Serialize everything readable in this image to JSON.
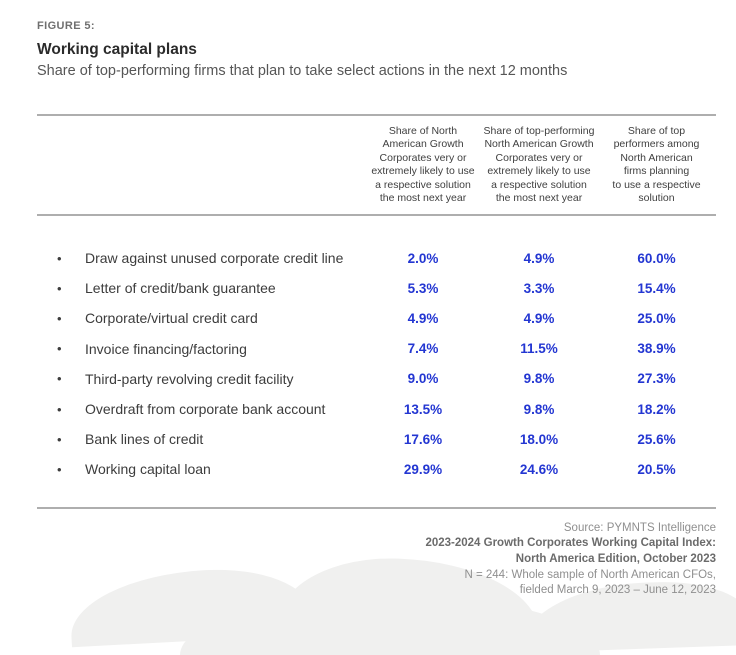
{
  "figure": {
    "label": "FIGURE 5:",
    "title": "Working capital plans",
    "subtitle": "Share of top-performing firms that plan to take select actions in the next 12 months"
  },
  "table": {
    "column_headers": [
      "Share of North\nAmerican Growth\nCorporates very or\nextremely likely to use\na respective solution\nthe most next year",
      "Share of top-performing\nNorth American Growth\nCorporates very or\nextremely likely to use\na respective solution\nthe most next year",
      "Share of top\nperformers among\nNorth American\nfirms planning\nto use a respective\nsolution"
    ],
    "rows": [
      {
        "label": "Draw against unused corporate credit line",
        "values": [
          "2.0%",
          "4.9%",
          "60.0%"
        ]
      },
      {
        "label": "Letter of credit/bank guarantee",
        "values": [
          "5.3%",
          "3.3%",
          "15.4%"
        ]
      },
      {
        "label": "Corporate/virtual credit card",
        "values": [
          "4.9%",
          "4.9%",
          "25.0%"
        ]
      },
      {
        "label": "Invoice financing/factoring",
        "values": [
          "7.4%",
          "11.5%",
          "38.9%"
        ]
      },
      {
        "label": "Third-party revolving credit facility",
        "values": [
          "9.0%",
          "9.8%",
          "27.3%"
        ]
      },
      {
        "label": "Overdraft from corporate bank account",
        "values": [
          "13.5%",
          "9.8%",
          "18.2%"
        ]
      },
      {
        "label": "Bank lines of credit",
        "values": [
          "17.6%",
          "18.0%",
          "25.6%"
        ]
      },
      {
        "label": "Working capital loan",
        "values": [
          "29.9%",
          "24.6%",
          "20.5%"
        ]
      }
    ]
  },
  "footer": {
    "lines": [
      {
        "text": "Source: PYMNTS Intelligence"
      },
      {
        "text": "2023-2024 Growth Corporates Working Capital Index:"
      },
      {
        "text": "North America Edition, October 2023"
      },
      {
        "text": "N = 244: Whole sample of North American CFOs,"
      },
      {
        "text": "fielded March 9, 2023 – June 12, 2023"
      }
    ]
  },
  "colors": {
    "accent_blue": "#2336d2",
    "rule_gray": "#aeaeae"
  },
  "chart_data": {
    "type": "table",
    "title": "Working capital plans",
    "subtitle": "Share of top-performing firms that plan to take select actions in the next 12 months",
    "categories": [
      "Draw against unused corporate credit line",
      "Letter of credit/bank guarantee",
      "Corporate/virtual credit card",
      "Invoice financing/factoring",
      "Third-party revolving credit facility",
      "Overdraft from corporate bank account",
      "Bank lines of credit",
      "Working capital loan"
    ],
    "series": [
      {
        "name": "Share of North American Growth Corporates very or extremely likely to use a respective solution the most next year",
        "values": [
          2.0,
          5.3,
          4.9,
          7.4,
          9.0,
          13.5,
          17.6,
          29.9
        ]
      },
      {
        "name": "Share of top-performing North American Growth Corporates very or extremely likely to use a respective solution the most next year",
        "values": [
          4.9,
          3.3,
          4.9,
          11.5,
          9.8,
          9.8,
          18.0,
          24.6
        ]
      },
      {
        "name": "Share of top performers among North American firms planning to use a respective solution",
        "values": [
          60.0,
          15.4,
          25.0,
          38.9,
          27.3,
          18.2,
          25.6,
          20.5
        ]
      }
    ],
    "unit": "%"
  }
}
